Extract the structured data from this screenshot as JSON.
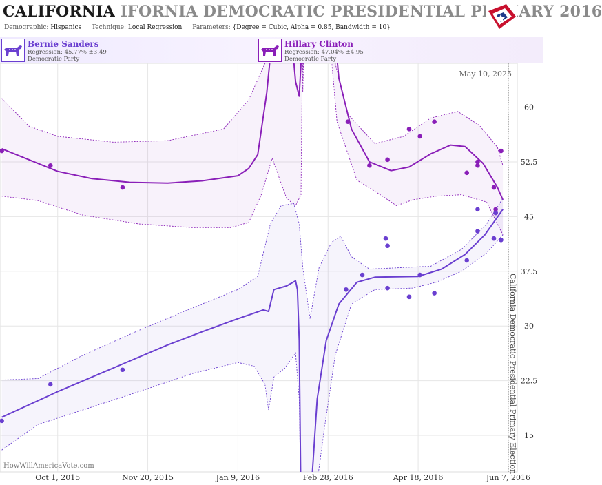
{
  "header": {
    "title_strong": "CALIFORNIA",
    "title_ghost": "IFORNIA DEMOCRATIC PRESIDENTIAL PRIMARY 2016",
    "demographic_label": "Demographic:",
    "demographic_value": "Hispanics",
    "technique_label": "Technique:",
    "technique_value": "Local Regression",
    "parameters_label": "Parameters:",
    "parameters_value": "{Degree = Cubic, Alpha = 0.85, Bandwidth = 10}",
    "flag_icon": "us-flag-star-icon"
  },
  "candidates": [
    {
      "name": "Bernie Sanders",
      "regression": "Regression: 45.77% ±3.49",
      "party": "Democratic Party",
      "color": "#6a3fd0",
      "icon": "donkey-icon"
    },
    {
      "name": "Hillary Clinton",
      "regression": "Regression: 47.04% ±4.95",
      "party": "Democratic Party",
      "color": "#8a1fb8",
      "icon": "donkey-icon"
    }
  ],
  "watermark": "HowWillAmericaVote.com",
  "chart_data": {
    "type": "line",
    "date_label": "May 10, 2025",
    "election_label": "California Democratic Presidential Primary Election",
    "election_date": "2016-06-07",
    "ylim": [
      10,
      66
    ],
    "yticks": [
      15,
      22.5,
      30,
      37.5,
      45,
      52.5,
      60
    ],
    "ytick_labels": [
      "15",
      "22.5",
      "30",
      "37.5",
      "45",
      "52.5",
      "60"
    ],
    "xticks": [
      "2015-10-01",
      "2015-11-20",
      "2016-01-09",
      "2016-02-28",
      "2016-04-18",
      "2016-06-07"
    ],
    "xtick_labels": [
      "Oct 1, 2015",
      "Nov 20, 2015",
      "Jan 9, 2016",
      "Feb 28, 2016",
      "Apr 18, 2016",
      "Jun 7, 2016"
    ],
    "xlim": [
      "2015-08-30",
      "2016-06-12"
    ],
    "grid": true,
    "series": [
      {
        "name": "Hillary Clinton",
        "color": "#8a1fb8",
        "points": [
          [
            "2015-08-31",
            54
          ],
          [
            "2015-09-27",
            52
          ],
          [
            "2015-11-06",
            49
          ],
          [
            "2016-03-10",
            58
          ],
          [
            "2016-03-22",
            52
          ],
          [
            "2016-04-01",
            52.8
          ],
          [
            "2016-04-13",
            57
          ],
          [
            "2016-04-19",
            56
          ],
          [
            "2016-04-27",
            58
          ],
          [
            "2016-05-15",
            51
          ],
          [
            "2016-05-21",
            52.5
          ],
          [
            "2016-05-21",
            52
          ],
          [
            "2016-05-30",
            49
          ],
          [
            "2016-05-31",
            46
          ],
          [
            "2016-05-31",
            45.5
          ],
          [
            "2016-06-03",
            54
          ]
        ],
        "trend": [
          [
            "2015-08-31",
            54.3
          ],
          [
            "2015-09-15",
            52.8
          ],
          [
            "2015-10-01",
            51.2
          ],
          [
            "2015-10-20",
            50.2
          ],
          [
            "2015-11-10",
            49.7
          ],
          [
            "2015-12-01",
            49.6
          ],
          [
            "2015-12-20",
            49.9
          ],
          [
            "2016-01-09",
            50.6
          ],
          [
            "2016-01-15",
            51.6
          ],
          [
            "2016-01-20",
            53.5
          ],
          [
            "2016-01-25",
            62
          ],
          [
            "2016-01-29",
            72
          ],
          [
            "2016-02-07",
            72
          ],
          [
            "2016-02-10",
            63.5
          ],
          [
            "2016-02-12",
            61.5
          ],
          [
            "2016-02-13",
            66
          ],
          [
            "2016-02-13",
            72
          ],
          [
            "2016-03-02",
            72
          ],
          [
            "2016-03-05",
            64
          ],
          [
            "2016-03-12",
            57
          ],
          [
            "2016-03-22",
            52.5
          ],
          [
            "2016-04-03",
            51.3
          ],
          [
            "2016-04-13",
            51.8
          ],
          [
            "2016-04-25",
            53.6
          ],
          [
            "2016-05-06",
            54.8
          ],
          [
            "2016-05-14",
            54.6
          ],
          [
            "2016-05-24",
            52.3
          ],
          [
            "2016-06-01",
            49
          ],
          [
            "2016-06-04",
            47.3
          ]
        ],
        "band_upper": [
          [
            "2015-08-31",
            61.2
          ],
          [
            "2015-09-15",
            57.4
          ],
          [
            "2015-10-01",
            56
          ],
          [
            "2015-11-01",
            55.2
          ],
          [
            "2015-12-01",
            55.4
          ],
          [
            "2016-01-01",
            57
          ],
          [
            "2016-01-15",
            61
          ],
          [
            "2016-01-24",
            66
          ],
          [
            "2016-01-25",
            72
          ],
          [
            "2016-02-14",
            72
          ],
          [
            "2016-02-14",
            62
          ],
          [
            "2016-02-15",
            72
          ],
          [
            "2016-03-01",
            72
          ],
          [
            "2016-03-03",
            66
          ],
          [
            "2016-03-10",
            59
          ],
          [
            "2016-03-25",
            55
          ],
          [
            "2016-04-10",
            56
          ],
          [
            "2016-04-25",
            58.5
          ],
          [
            "2016-05-10",
            59.4
          ],
          [
            "2016-05-22",
            57.5
          ],
          [
            "2016-06-01",
            54.5
          ],
          [
            "2016-06-04",
            52
          ]
        ],
        "band_lower": [
          [
            "2015-08-31",
            47.8
          ],
          [
            "2015-09-20",
            47.2
          ],
          [
            "2015-10-15",
            45.2
          ],
          [
            "2015-11-15",
            44
          ],
          [
            "2015-12-15",
            43.5
          ],
          [
            "2016-01-05",
            43.5
          ],
          [
            "2016-01-15",
            44.2
          ],
          [
            "2016-01-22",
            48
          ],
          [
            "2016-01-28",
            53
          ],
          [
            "2016-02-05",
            47.5
          ],
          [
            "2016-02-10",
            46.5
          ],
          [
            "2016-02-13",
            48
          ],
          [
            "2016-02-14",
            72
          ],
          [
            "2016-02-28",
            72
          ],
          [
            "2016-03-04",
            58
          ],
          [
            "2016-03-15",
            50
          ],
          [
            "2016-03-28",
            48
          ],
          [
            "2016-04-06",
            46.5
          ],
          [
            "2016-04-15",
            47.3
          ],
          [
            "2016-04-28",
            47.8
          ],
          [
            "2016-05-12",
            48
          ],
          [
            "2016-05-26",
            47
          ],
          [
            "2016-06-04",
            42.5
          ]
        ]
      },
      {
        "name": "Bernie Sanders",
        "color": "#6a3fd0",
        "points": [
          [
            "2015-08-31",
            17
          ],
          [
            "2015-09-27",
            22
          ],
          [
            "2015-11-06",
            24
          ],
          [
            "2016-03-09",
            35
          ],
          [
            "2016-03-18",
            37
          ],
          [
            "2016-03-31",
            42
          ],
          [
            "2016-04-01",
            41
          ],
          [
            "2016-04-01",
            35.2
          ],
          [
            "2016-04-13",
            34
          ],
          [
            "2016-04-19",
            37
          ],
          [
            "2016-04-27",
            34.5
          ],
          [
            "2016-05-15",
            39
          ],
          [
            "2016-05-21",
            43
          ],
          [
            "2016-05-21",
            46
          ],
          [
            "2016-05-30",
            42
          ],
          [
            "2016-05-31",
            45.5
          ],
          [
            "2016-06-03",
            41.8
          ]
        ],
        "trend": [
          [
            "2015-08-31",
            17.5
          ],
          [
            "2015-09-15",
            19.2
          ],
          [
            "2015-10-01",
            21
          ],
          [
            "2015-10-20",
            23
          ],
          [
            "2015-11-10",
            25.2
          ],
          [
            "2015-12-01",
            27.4
          ],
          [
            "2015-12-20",
            29.2
          ],
          [
            "2016-01-09",
            31
          ],
          [
            "2016-01-16",
            31.6
          ],
          [
            "2016-01-23",
            32.2
          ],
          [
            "2016-01-26",
            32
          ],
          [
            "2016-01-29",
            35
          ],
          [
            "2016-02-05",
            35.5
          ],
          [
            "2016-02-10",
            36.2
          ],
          [
            "2016-02-11",
            35
          ],
          [
            "2016-02-12",
            28
          ],
          [
            "2016-02-13",
            5
          ],
          [
            "2016-02-18",
            5
          ],
          [
            "2016-02-22",
            20
          ],
          [
            "2016-02-27",
            28
          ],
          [
            "2016-03-05",
            33
          ],
          [
            "2016-03-15",
            36
          ],
          [
            "2016-03-25",
            36.7
          ],
          [
            "2016-04-18",
            36.8
          ],
          [
            "2016-05-01",
            37.8
          ],
          [
            "2016-05-14",
            39.8
          ],
          [
            "2016-05-25",
            42.5
          ],
          [
            "2016-06-04",
            46
          ]
        ],
        "band_upper": [
          [
            "2015-08-31",
            22.6
          ],
          [
            "2015-09-20",
            22.8
          ],
          [
            "2015-10-15",
            26
          ],
          [
            "2015-11-15",
            29.4
          ],
          [
            "2015-12-15",
            32.5
          ],
          [
            "2016-01-09",
            35
          ],
          [
            "2016-01-20",
            36.8
          ],
          [
            "2016-01-27",
            44
          ],
          [
            "2016-02-02",
            46.5
          ],
          [
            "2016-02-09",
            46.8
          ],
          [
            "2016-02-12",
            44
          ],
          [
            "2016-02-14",
            38
          ],
          [
            "2016-02-18",
            31
          ],
          [
            "2016-02-23",
            38
          ],
          [
            "2016-03-01",
            41.5
          ],
          [
            "2016-03-06",
            42.3
          ],
          [
            "2016-03-12",
            39.5
          ],
          [
            "2016-03-22",
            37.8
          ],
          [
            "2016-04-08",
            38
          ],
          [
            "2016-04-25",
            38.2
          ],
          [
            "2016-05-12",
            40.5
          ],
          [
            "2016-05-26",
            44
          ],
          [
            "2016-06-04",
            47.5
          ]
        ],
        "band_lower": [
          [
            "2015-08-31",
            13
          ],
          [
            "2015-09-20",
            16.5
          ],
          [
            "2015-10-15",
            18.5
          ],
          [
            "2015-11-15",
            21
          ],
          [
            "2015-12-15",
            23.5
          ],
          [
            "2016-01-09",
            25
          ],
          [
            "2016-01-18",
            24.5
          ],
          [
            "2016-01-24",
            22
          ],
          [
            "2016-01-26",
            18.5
          ],
          [
            "2016-01-29",
            23
          ],
          [
            "2016-02-04",
            24.2
          ],
          [
            "2016-02-10",
            26.3
          ],
          [
            "2016-02-12",
            20
          ],
          [
            "2016-02-13",
            5
          ],
          [
            "2016-02-20",
            5
          ],
          [
            "2016-02-26",
            16
          ],
          [
            "2016-03-03",
            26
          ],
          [
            "2016-03-12",
            33
          ],
          [
            "2016-03-25",
            35
          ],
          [
            "2016-04-15",
            35.2
          ],
          [
            "2016-04-28",
            36
          ],
          [
            "2016-05-12",
            37.5
          ],
          [
            "2016-05-26",
            40
          ],
          [
            "2016-06-04",
            42.5
          ]
        ]
      }
    ]
  }
}
